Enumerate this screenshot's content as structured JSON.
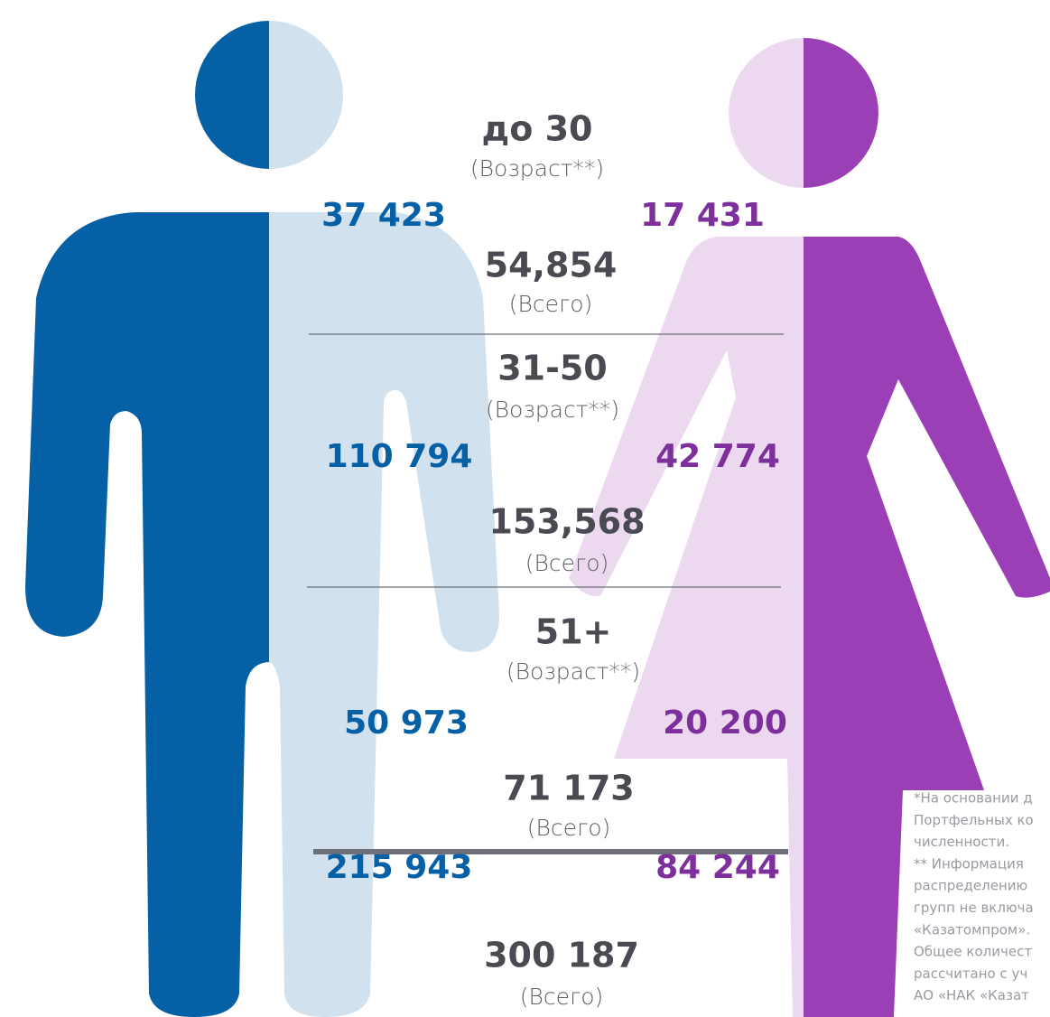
{
  "groups": [
    {
      "age": "до 30",
      "age_note": "(Возраст**)",
      "male": "37 423",
      "female": "17 431",
      "total": "54,854",
      "total_note": "(Всего)"
    },
    {
      "age": "31-50",
      "age_note": "(Возраст**)",
      "male": "110 794",
      "female": "42 774",
      "total": "153,568",
      "total_note": "(Всего)"
    },
    {
      "age": "51+",
      "age_note": "(Возраст**)",
      "male": "50 973",
      "female": "20 200",
      "total": "71 173",
      "total_note": "(Всего)"
    }
  ],
  "totals": {
    "male": "215 943",
    "female": "84 244",
    "total": "300 187",
    "total_note": "(Всего)"
  },
  "footnote": [
    "*На основании д",
    "Портфельных ко",
    "численности.",
    "** Информация",
    "распределению",
    "групп не включа",
    "«Казатомпром».",
    "Общее количест",
    "рассчитано с уч",
    "АО «НАК «Казат"
  ]
}
